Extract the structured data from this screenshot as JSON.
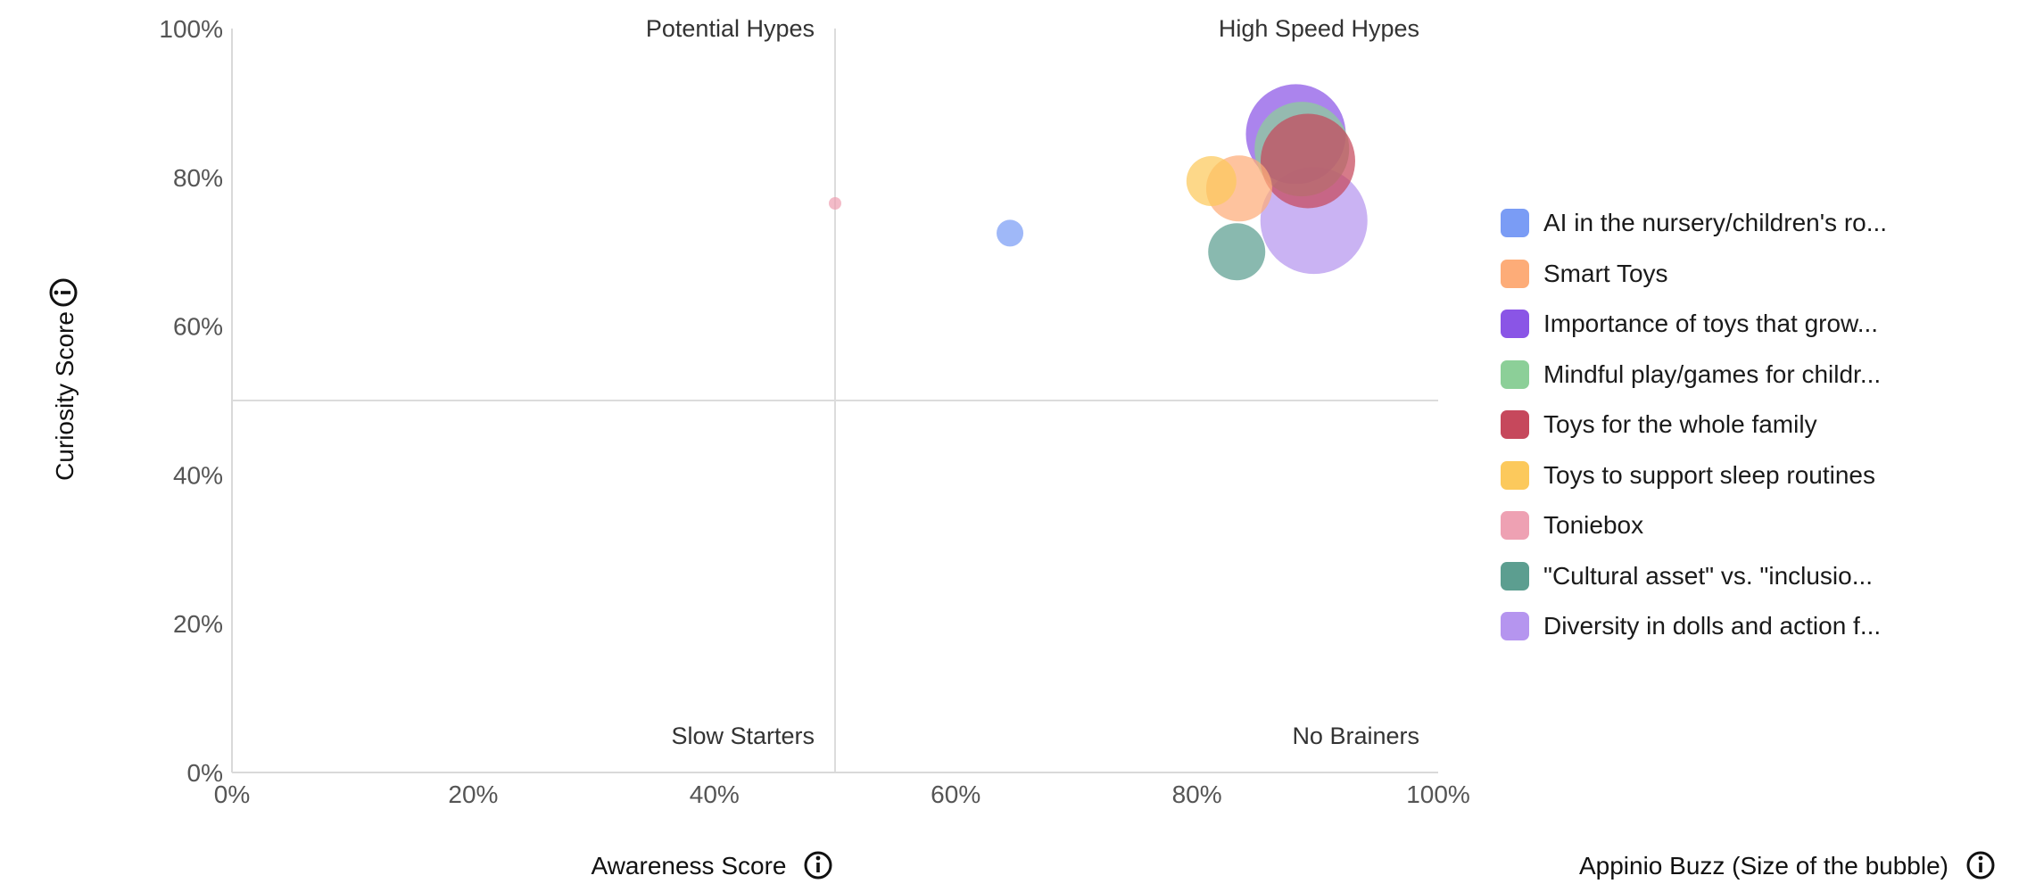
{
  "chart_data": {
    "type": "scatter",
    "bubble": true,
    "xlabel": "Awareness Score",
    "ylabel": "Curiosity Score",
    "size_label": "Appinio Buzz (Size of the bubble)",
    "xlim": [
      0,
      100
    ],
    "ylim": [
      0,
      100
    ],
    "x_ticks": [
      "0%",
      "20%",
      "40%",
      "60%",
      "80%",
      "100%"
    ],
    "y_ticks": [
      "0%",
      "20%",
      "40%",
      "60%",
      "80%",
      "100%"
    ],
    "x_tick_values": [
      0,
      20,
      40,
      60,
      80,
      100
    ],
    "y_tick_values": [
      0,
      20,
      40,
      60,
      80,
      100
    ],
    "quadrant_dividers": {
      "x": 50,
      "y": 50
    },
    "quadrants": {
      "top_left": "Potential Hypes",
      "top_right": "High Speed Hypes",
      "bottom_left": "Slow Starters",
      "bottom_right": "No Brainers"
    },
    "legend_position": "right",
    "series": [
      {
        "name": "AI in the nursery/children's ro...",
        "color": "#7a9cf5",
        "x": 64.5,
        "y": 72.5,
        "size": 15
      },
      {
        "name": "Smart Toys",
        "color": "#fdac78",
        "x": 83.5,
        "y": 78.5,
        "size": 37
      },
      {
        "name": "Importance of toys that grow...",
        "color": "#8a55e6",
        "x": 88.2,
        "y": 85.8,
        "size": 56
      },
      {
        "name": "Mindful play/games for childr...",
        "color": "#8ccf98",
        "x": 88.7,
        "y": 83.8,
        "size": 53
      },
      {
        "name": "Toys for the whole family",
        "color": "#c6485c",
        "x": 89.2,
        "y": 82.2,
        "size": 53
      },
      {
        "name": "Toys to support sleep routines",
        "color": "#fcc95c",
        "x": 81.2,
        "y": 79.5,
        "size": 28
      },
      {
        "name": "Toniebox",
        "color": "#eea1b3",
        "x": 50.0,
        "y": 76.5,
        "size": 7
      },
      {
        "name": "\"Cultural asset\" vs. \"inclusio...",
        "color": "#5c9e90",
        "x": 83.3,
        "y": 70.0,
        "size": 32
      },
      {
        "name": "Diversity in dolls and action f...",
        "color": "#b595ef",
        "x": 89.7,
        "y": 74.2,
        "size": 60
      }
    ]
  }
}
